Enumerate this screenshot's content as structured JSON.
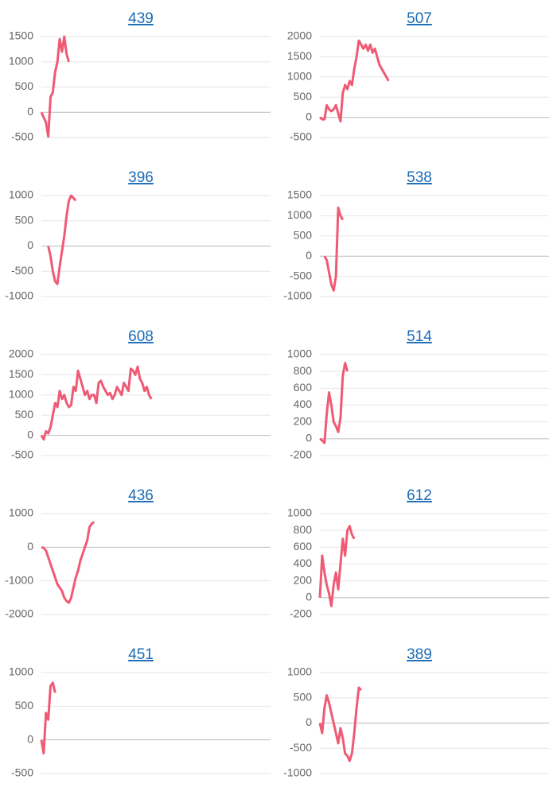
{
  "chart_data": [
    {
      "type": "line",
      "title": "439",
      "color": "#ef5a74",
      "xlim": [
        0,
        100
      ],
      "ylim": [
        -500,
        1500
      ],
      "yticks": [
        -500,
        0,
        500,
        1000,
        1500
      ],
      "grid": true,
      "values": [
        0,
        -100,
        -200,
        -480,
        300,
        400,
        800,
        1000,
        1450,
        1200,
        1500,
        1150,
        1000
      ]
    },
    {
      "type": "line",
      "title": "507",
      "color": "#ef5a74",
      "xlim": [
        0,
        100
      ],
      "ylim": [
        -500,
        2000
      ],
      "yticks": [
        -500,
        0,
        500,
        1000,
        1500,
        2000
      ],
      "grid": true,
      "values": [
        0,
        -50,
        -50,
        300,
        200,
        150,
        200,
        300,
        100,
        -100,
        600,
        800,
        700,
        900,
        800,
        1200,
        1500,
        1900,
        1800,
        1700,
        1800,
        1650,
        1800,
        1600,
        1700,
        1500,
        1300,
        1200,
        1100,
        1000,
        900
      ]
    },
    {
      "type": "line",
      "title": "396",
      "color": "#ef5a74",
      "xlim": [
        0,
        100
      ],
      "ylim": [
        -1000,
        1000
      ],
      "yticks": [
        -1000,
        -500,
        0,
        500,
        1000
      ],
      "grid": true,
      "values": [
        null,
        null,
        null,
        0,
        -200,
        -500,
        -700,
        -750,
        -400,
        -100,
        200,
        600,
        900,
        1000,
        950,
        900
      ]
    },
    {
      "type": "line",
      "title": "538",
      "color": "#ef5a74",
      "xlim": [
        0,
        100
      ],
      "ylim": [
        -1000,
        1500
      ],
      "yticks": [
        -1000,
        -500,
        0,
        500,
        1000,
        1500
      ],
      "grid": true,
      "values": [
        null,
        null,
        0,
        -100,
        -400,
        -700,
        -850,
        -500,
        1200,
        1000,
        900
      ]
    },
    {
      "type": "line",
      "title": "608",
      "color": "#ef5a74",
      "xlim": [
        0,
        100
      ],
      "ylim": [
        -500,
        2000
      ],
      "yticks": [
        -500,
        0,
        500,
        1000,
        1500,
        2000
      ],
      "grid": true,
      "values": [
        0,
        -100,
        100,
        50,
        200,
        500,
        800,
        700,
        1100,
        900,
        1000,
        800,
        700,
        750,
        1200,
        1100,
        1600,
        1400,
        1200,
        1000,
        1100,
        900,
        1000,
        1000,
        800,
        1300,
        1350,
        1200,
        1100,
        1000,
        1050,
        900,
        1000,
        1200,
        1100,
        1000,
        1300,
        1200,
        1100,
        1650,
        1600,
        1500,
        1700,
        1400,
        1300,
        1100,
        1200,
        1000,
        900
      ]
    },
    {
      "type": "line",
      "title": "514",
      "color": "#ef5a74",
      "xlim": [
        0,
        100
      ],
      "ylim": [
        -200,
        1000
      ],
      "yticks": [
        -200,
        0,
        200,
        400,
        600,
        800,
        1000
      ],
      "grid": true,
      "values": [
        0,
        -20,
        -50,
        300,
        550,
        400,
        200,
        150,
        80,
        250,
        750,
        900,
        800
      ]
    },
    {
      "type": "line",
      "title": "436",
      "color": "#ef5a74",
      "xlim": [
        0,
        100
      ],
      "ylim": [
        -2000,
        1000
      ],
      "yticks": [
        -2000,
        -1000,
        0,
        1000
      ],
      "grid": true,
      "values": [
        0,
        -20,
        -100,
        -300,
        -500,
        -700,
        -900,
        -1100,
        -1200,
        -1300,
        -1500,
        -1600,
        -1650,
        -1500,
        -1200,
        -900,
        -700,
        -400,
        -200,
        0,
        200,
        600,
        700,
        750
      ]
    },
    {
      "type": "line",
      "title": "612",
      "color": "#ef5a74",
      "xlim": [
        0,
        100
      ],
      "ylim": [
        -200,
        1000
      ],
      "yticks": [
        -200,
        0,
        200,
        400,
        600,
        800,
        1000
      ],
      "grid": true,
      "values": [
        0,
        500,
        300,
        150,
        50,
        -100,
        150,
        300,
        100,
        400,
        700,
        500,
        800,
        850,
        750,
        700
      ]
    },
    {
      "type": "line",
      "title": "451",
      "color": "#ef5a74",
      "xlim": [
        0,
        100
      ],
      "ylim": [
        -500,
        1000
      ],
      "yticks": [
        -500,
        0,
        500,
        1000
      ],
      "grid": true,
      "values": [
        0,
        -200,
        400,
        300,
        800,
        850,
        700
      ]
    },
    {
      "type": "line",
      "title": "389",
      "color": "#ef5a74",
      "xlim": [
        0,
        100
      ],
      "ylim": [
        -1000,
        1000
      ],
      "yticks": [
        -1000,
        -500,
        0,
        500,
        1000
      ],
      "grid": true,
      "values": [
        0,
        -200,
        300,
        550,
        400,
        200,
        0,
        -200,
        -400,
        -100,
        -300,
        -600,
        -650,
        -750,
        -600,
        -200,
        300,
        700,
        650
      ]
    }
  ]
}
